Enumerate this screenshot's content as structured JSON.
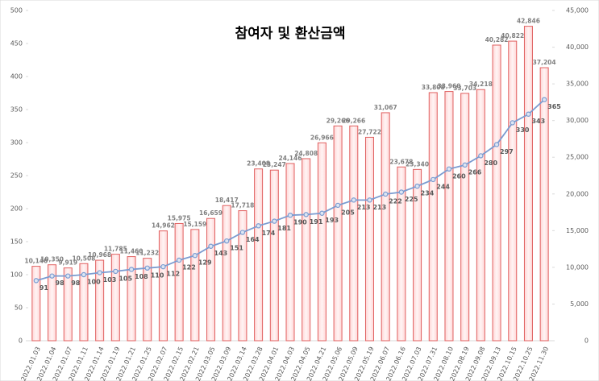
{
  "chart_data": {
    "type": "bar-line",
    "title": "참여자 및 환산금액",
    "categories": [
      "2022.01.03",
      "2022.01.04",
      "2022.01.07",
      "2022.01.11",
      "2022.01.14",
      "2022.01.19",
      "2022.01.21",
      "2022.01.25",
      "2022.02.07",
      "2022.02.15",
      "2022.02.21",
      "2022.03.05",
      "2022.03.09",
      "2022.03.14",
      "2022.03.28",
      "2022.04.01",
      "2022.04.03",
      "2022.04.05",
      "2022.04.21",
      "2022.05.06",
      "2022.05.09",
      "2022.05.19",
      "2022.06.07",
      "2022.06.16",
      "2022.07.03",
      "2022.07.31",
      "2022.08.10",
      "2022.08.19",
      "2022.09.08",
      "2022.09.13",
      "2022.10.15",
      "2022.10.25",
      "2022.11.30"
    ],
    "series": [
      {
        "type": "bar",
        "axis": "y2",
        "color": "#e06060",
        "values": [
          10140,
          10350,
          9919,
          10508,
          10968,
          11785,
          11460,
          11232,
          14962,
          15975,
          15159,
          16659,
          18417,
          17718,
          23408,
          23247,
          24146,
          24808,
          26966,
          29266,
          29266,
          27722,
          31067,
          23678,
          23340,
          33808,
          33960,
          33703,
          34218,
          40282,
          40822,
          42846,
          37204
        ],
        "value_labels": [
          "10,140",
          "10,350",
          "9,919",
          "10,508",
          "10,968",
          "11,785",
          "11,460",
          "11,232",
          "14,962",
          "15,975",
          "15,159",
          "16,659",
          "18,417",
          "17,718",
          "23,408",
          "23,247",
          "24,146",
          "24,808",
          "26,966",
          "29,266",
          "29,266",
          "27,722",
          "31,067",
          "23,678",
          "23,340",
          "33,808",
          "33,960",
          "33,703",
          "34,218",
          "40,282",
          "40,822",
          "42,846",
          "37,204"
        ]
      },
      {
        "type": "line",
        "color": "#7b9bd0",
        "values": [
          91,
          98,
          98,
          100,
          103,
          105,
          108,
          110,
          112,
          122,
          129,
          143,
          151,
          164,
          174,
          181,
          190,
          191,
          193,
          205,
          213,
          213,
          222,
          225,
          234,
          244,
          260,
          266,
          280,
          297,
          330,
          343,
          365
        ]
      }
    ],
    "ylim": [
      0,
      500
    ],
    "yticks": [
      0,
      50,
      100,
      150,
      200,
      250,
      300,
      350,
      400,
      450,
      500
    ],
    "y2lim": [
      0,
      45000
    ],
    "y2ticks": [
      0,
      {
        "value": 5000,
        "label": "5,000"
      },
      {
        "value": 10000,
        "label": "10,000"
      },
      {
        "value": 15000,
        "label": "15,000"
      },
      {
        "value": 20000,
        "label": "20,000"
      },
      {
        "value": 25000,
        "label": "25,000"
      },
      {
        "value": 30000,
        "label": "30,000"
      },
      {
        "value": 35000,
        "label": "35,000"
      },
      {
        "value": 40000,
        "label": "40,000"
      },
      {
        "value": 45000,
        "label": "45,000"
      }
    ],
    "grid": false
  }
}
